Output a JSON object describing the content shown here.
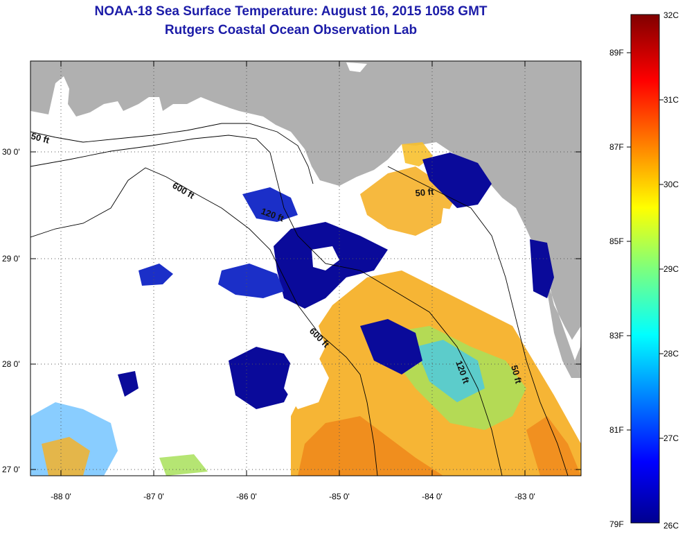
{
  "title": {
    "line1": "NOAA-18 Sea Surface Temperature:  August 16, 2015 1058 GMT",
    "line2": "Rutgers Coastal Ocean Observation Lab"
  },
  "lat_ticks": [
    "30 0'",
    "29 0'",
    "28 0'",
    "27 0'"
  ],
  "lon_ticks": [
    "-88 0'",
    "-87 0'",
    "-86 0'",
    "-85 0'",
    "-84 0'",
    "-83 0'"
  ],
  "contours": [
    "50 ft",
    "600 ft",
    "120 ft",
    "600 ft",
    "50 ft",
    "120 ft",
    "50 ft"
  ],
  "colorbar": {
    "fahrenheit": [
      "89F",
      "87F",
      "85F",
      "83F",
      "81F",
      "79F"
    ],
    "celsius": [
      "32C",
      "31C",
      "30C",
      "29C",
      "28C",
      "27C",
      "26C"
    ]
  },
  "colors": {
    "title": "#1c1ca8",
    "land": "#b0b0b0",
    "cloud": "#ffffff",
    "cold": "#00008f",
    "warm": "#f5a623",
    "hot": "#800000"
  }
}
